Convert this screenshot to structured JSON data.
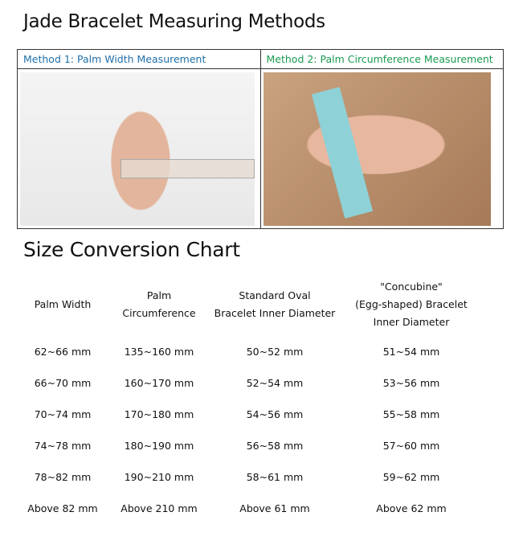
{
  "title": "Jade Bracelet Measuring Methods",
  "methods": [
    {
      "label": "Method 1: Palm Width Measurement",
      "color": "#1f6fa8"
    },
    {
      "label": "Method 2: Palm Circumference Measurement",
      "color": "#1a9a52"
    }
  ],
  "chart_title": "Size Conversion Chart",
  "table": {
    "headers": [
      [
        "Palm Width"
      ],
      [
        "Palm",
        "Circumference"
      ],
      [
        "Standard Oval",
        "Bracelet Inner Diameter"
      ],
      [
        "\"Concubine\"",
        "(Egg-shaped) Bracelet",
        "Inner Diameter"
      ]
    ],
    "rows": [
      [
        "62~66 mm",
        "135~160 mm",
        "50~52 mm",
        "51~54 mm"
      ],
      [
        "66~70 mm",
        "160~170 mm",
        "52~54 mm",
        "53~56 mm"
      ],
      [
        "70~74 mm",
        "170~180 mm",
        "54~56 mm",
        "55~58 mm"
      ],
      [
        "74~78 mm",
        "180~190 mm",
        "56~58 mm",
        "57~60 mm"
      ],
      [
        "78~82 mm",
        "190~210 mm",
        "58~61 mm",
        "59~62 mm"
      ],
      [
        "Above 82 mm",
        "Above 210 mm",
        "Above 61 mm",
        "Above 62 mm"
      ]
    ]
  }
}
